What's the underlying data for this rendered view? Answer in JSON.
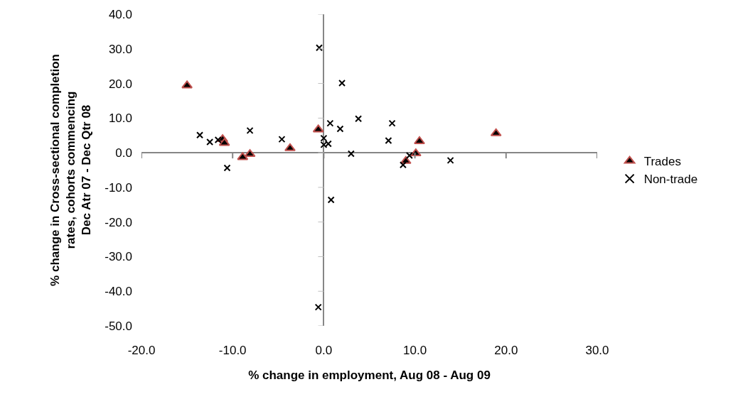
{
  "chart_data": {
    "type": "scatter",
    "xlabel": "% change in employment, Aug 08 - Aug 09",
    "ylabel": "% change in Cross-sectional completion\nrates, cohorts commencing\nDec Atr 07 - Dec Qtr 08",
    "xlim": [
      -20,
      30
    ],
    "ylim": [
      -50,
      40
    ],
    "xticks": [
      {
        "value": -20,
        "label": "-20.0"
      },
      {
        "value": -10,
        "label": "-10.0"
      },
      {
        "value": 0,
        "label": "0.0"
      },
      {
        "value": 10,
        "label": "10.0"
      },
      {
        "value": 20,
        "label": "20.0"
      },
      {
        "value": 30,
        "label": "30.0"
      }
    ],
    "yticks": [
      {
        "value": -50,
        "label": "-50.0"
      },
      {
        "value": -40,
        "label": "-40.0"
      },
      {
        "value": -30,
        "label": "-30.0"
      },
      {
        "value": -20,
        "label": "-20.0"
      },
      {
        "value": -10,
        "label": "-10.0"
      },
      {
        "value": 0,
        "label": "0.0"
      },
      {
        "value": 10,
        "label": "10.0"
      },
      {
        "value": 20,
        "label": "20.0"
      },
      {
        "value": 30,
        "label": "30.0"
      },
      {
        "value": 40,
        "label": "40.0"
      }
    ],
    "legend": "right",
    "series": [
      {
        "name": "Trades",
        "color": "#c0504d",
        "marker": "triangle",
        "x": [
          -15.0,
          -11.1,
          -10.9,
          -8.9,
          -8.1,
          -3.7,
          -0.6,
          10.5,
          10.1,
          9.0,
          18.9
        ],
        "values": [
          19.4,
          3.9,
          2.8,
          -1.3,
          -0.4,
          1.3,
          6.7,
          3.3,
          -0.2,
          -2.4,
          5.6
        ]
      },
      {
        "name": "Non-trade",
        "color": "#000000",
        "marker": "cross",
        "x": [
          -13.6,
          -12.5,
          -11.6,
          -10.6,
          -8.1,
          -4.6,
          0.7,
          1.8,
          0.0,
          0.0,
          0.5,
          -0.5,
          2.0,
          3.8,
          7.5,
          7.1,
          3.0,
          9.4,
          8.7,
          13.9,
          0.8,
          -0.6
        ],
        "values": [
          5.1,
          3.1,
          3.7,
          -4.4,
          6.4,
          3.9,
          8.5,
          6.9,
          4.2,
          2.3,
          2.6,
          30.3,
          20.1,
          9.8,
          8.5,
          3.5,
          -0.3,
          -0.8,
          -3.5,
          -2.2,
          -13.6,
          -44.6
        ]
      }
    ]
  }
}
